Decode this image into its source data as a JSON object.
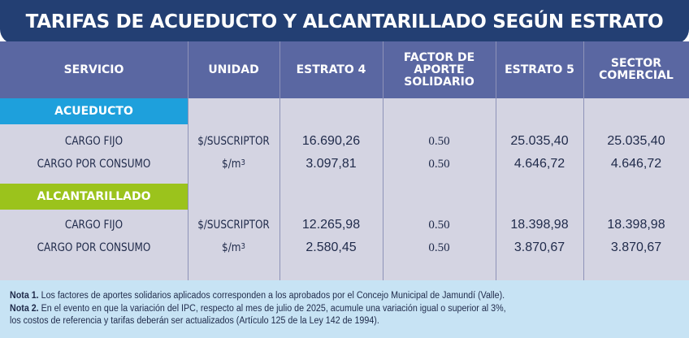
{
  "title": "TARIFAS DE ACUEDUCTO Y ALCANTARILLADO SEGÚN ESTRATO",
  "columns": [
    {
      "lines": [
        "SERVICIO"
      ]
    },
    {
      "lines": [
        "UNIDAD"
      ]
    },
    {
      "lines": [
        "ESTRATO 4"
      ]
    },
    {
      "lines": [
        "FACTOR DE",
        "APORTE",
        "SOLIDARIO"
      ]
    },
    {
      "lines": [
        "ESTRATO 5"
      ]
    },
    {
      "lines": [
        "SECTOR",
        "COMERCIAL"
      ]
    }
  ],
  "sections": [
    {
      "name": "ACUEDUCTO",
      "color": "#1ea0dc",
      "rows": [
        {
          "servicio": "CARGO FIJO",
          "unidad": "$/SUSCRIPTOR",
          "unidad_sup": "",
          "estrato4": "16.690,26",
          "factor": "0.50",
          "estrato5": "25.035,40",
          "comercial": "25.035,40"
        },
        {
          "servicio": "CARGO POR CONSUMO",
          "unidad": "$/m",
          "unidad_sup": "3",
          "estrato4": "3.097,81",
          "factor": "0.50",
          "estrato5": "4.646,72",
          "comercial": "4.646,72"
        }
      ]
    },
    {
      "name": "ALCANTARILLADO",
      "color": "#9bc31c",
      "rows": [
        {
          "servicio": "CARGO FIJO",
          "unidad": "$/SUSCRIPTOR",
          "unidad_sup": "",
          "estrato4": "12.265,98",
          "factor": "0.50",
          "estrato5": "18.398,98",
          "comercial": "18.398,98"
        },
        {
          "servicio": "CARGO POR CONSUMO",
          "unidad": "$/m",
          "unidad_sup": "3",
          "estrato4": "2.580,45",
          "factor": "0.50",
          "estrato5": "3.870,67",
          "comercial": "3.870,67"
        }
      ]
    }
  ],
  "notes": {
    "n1_label": "Nota 1.",
    "n1_text": " Los factores de aportes solidarios aplicados corresponden a los aprobados por el Concejo Municipal de Jamundí (Valle).",
    "n2_label": "Nota 2.",
    "n2_text": " En el evento en que la variación del IPC, respecto al mes de julio de 2025, acumule una variación igual o superior al 3%,",
    "n2_text2": "los costos de referencia y tarifas deberán ser actualizados (Artículo 125 de la Ley 142 de 1994)."
  },
  "colors": {
    "title_bg": "#233f73",
    "header_bg": "#5a67a2",
    "body_bg": "#d4d4e2",
    "notes_bg": "#c7e3f4",
    "text": "#1f2a4a"
  }
}
